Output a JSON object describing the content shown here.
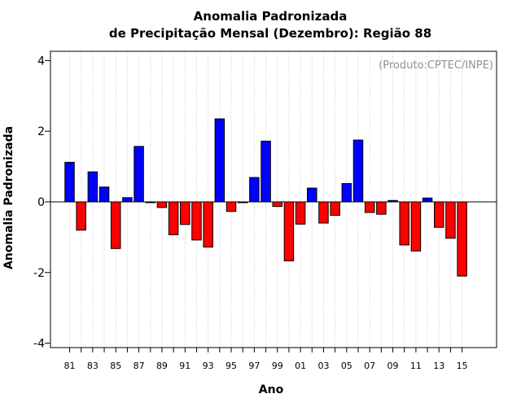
{
  "chart_data": {
    "type": "bar",
    "title_line1": "Anomalia Padronizada",
    "title_line2": "de Precipitação Mensal (Dezembro): Região 88",
    "xlabel": "Ano",
    "ylabel": "Anomalia Padronizada",
    "credit": "(Produto:CPTEC/INPE)",
    "ylim": [
      -4.2,
      4.4
    ],
    "yticks": [
      -4,
      -2,
      0,
      2,
      4
    ],
    "ytick_labels": [
      "-4",
      "-2",
      "0",
      "2",
      "4"
    ],
    "x_tick_labels": [
      "81",
      "83",
      "85",
      "87",
      "89",
      "91",
      "93",
      "95",
      "97",
      "99",
      "01",
      "03",
      "05",
      "07",
      "09",
      "11",
      "13",
      "15"
    ],
    "categories": [
      "1981",
      "1982",
      "1983",
      "1984",
      "1985",
      "1986",
      "1987",
      "1988",
      "1989",
      "1990",
      "1991",
      "1992",
      "1993",
      "1994",
      "1995",
      "1996",
      "1997",
      "1998",
      "1999",
      "2000",
      "2001",
      "2002",
      "2003",
      "2004",
      "2005",
      "2006",
      "2007",
      "2008",
      "2009",
      "2010",
      "2011",
      "2012",
      "2013",
      "2014",
      "2015"
    ],
    "values": [
      1.12,
      -0.8,
      0.85,
      0.42,
      -1.32,
      0.12,
      1.57,
      -0.02,
      -0.16,
      -0.93,
      -0.64,
      -1.08,
      -1.28,
      2.35,
      -0.27,
      -0.02,
      0.69,
      1.72,
      -0.13,
      -1.67,
      -0.63,
      0.39,
      -0.6,
      -0.38,
      0.52,
      1.75,
      -0.3,
      -0.35,
      0.04,
      -1.22,
      -1.39,
      0.11,
      -0.72,
      -1.03,
      -2.1
    ],
    "positive_color": "#0000ff",
    "negative_color": "#ff0000",
    "grid": "vertical dotted"
  }
}
